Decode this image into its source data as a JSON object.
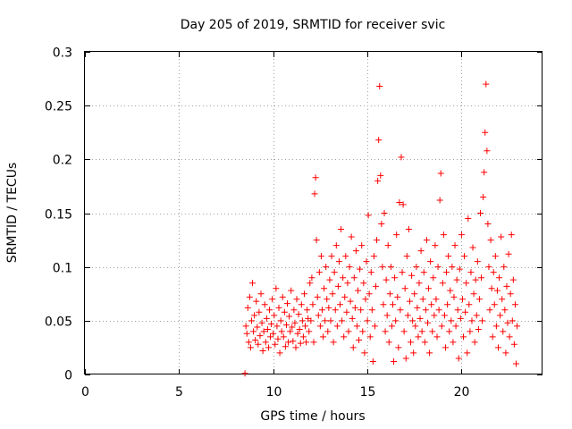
{
  "chart_data": {
    "type": "scatter",
    "title": "Day 205 of 2019, SRMTID for receiver svic",
    "xlabel": "GPS time / hours",
    "ylabel": "SRMTID / TECUs",
    "xlim": [
      0,
      24.3
    ],
    "ylim": [
      0,
      0.3
    ],
    "xticks": [
      0,
      5,
      10,
      15,
      20
    ],
    "xtick_labels": [
      "0",
      "5",
      "10",
      "15",
      "20"
    ],
    "yticks": [
      0,
      0.05,
      0.1,
      0.15,
      0.2,
      0.25,
      0.3
    ],
    "ytick_labels": [
      "0",
      "0.05",
      "0.1",
      "0.15",
      "0.2",
      "0.25",
      "0.3"
    ],
    "grid": true,
    "marker": "+",
    "color": "#ff0000",
    "series": [
      {
        "name": "svic",
        "points": [
          [
            8.5,
            0.001
          ],
          [
            8.55,
            0.045
          ],
          [
            8.6,
            0.038
          ],
          [
            8.65,
            0.062
          ],
          [
            8.7,
            0.03
          ],
          [
            8.75,
            0.072
          ],
          [
            8.8,
            0.025
          ],
          [
            8.85,
            0.05
          ],
          [
            8.9,
            0.085
          ],
          [
            8.95,
            0.04
          ],
          [
            9.0,
            0.055
          ],
          [
            9.05,
            0.032
          ],
          [
            9.1,
            0.068
          ],
          [
            9.15,
            0.044
          ],
          [
            9.2,
            0.028
          ],
          [
            9.25,
            0.058
          ],
          [
            9.3,
            0.036
          ],
          [
            9.35,
            0.075
          ],
          [
            9.4,
            0.048
          ],
          [
            9.45,
            0.022
          ],
          [
            9.5,
            0.04
          ],
          [
            9.55,
            0.065
          ],
          [
            9.6,
            0.03
          ],
          [
            9.65,
            0.052
          ],
          [
            9.7,
            0.042
          ],
          [
            9.75,
            0.025
          ],
          [
            9.8,
            0.06
          ],
          [
            9.85,
            0.035
          ],
          [
            9.9,
            0.047
          ],
          [
            9.95,
            0.07
          ],
          [
            10.0,
            0.038
          ],
          [
            10.05,
            0.055
          ],
          [
            10.1,
            0.028
          ],
          [
            10.15,
            0.08
          ],
          [
            10.2,
            0.045
          ],
          [
            10.25,
            0.033
          ],
          [
            10.3,
            0.062
          ],
          [
            10.35,
            0.02
          ],
          [
            10.4,
            0.05
          ],
          [
            10.45,
            0.04
          ],
          [
            10.5,
            0.072
          ],
          [
            10.55,
            0.035
          ],
          [
            10.6,
            0.058
          ],
          [
            10.65,
            0.026
          ],
          [
            10.7,
            0.046
          ],
          [
            10.75,
            0.066
          ],
          [
            10.8,
            0.03
          ],
          [
            10.85,
            0.054
          ],
          [
            10.9,
            0.04
          ],
          [
            10.95,
            0.078
          ],
          [
            11.0,
            0.044
          ],
          [
            11.05,
            0.031
          ],
          [
            11.1,
            0.06
          ],
          [
            11.15,
            0.048
          ],
          [
            11.2,
            0.025
          ],
          [
            11.25,
            0.07
          ],
          [
            11.3,
            0.038
          ],
          [
            11.35,
            0.056
          ],
          [
            11.4,
            0.042
          ],
          [
            11.45,
            0.029
          ],
          [
            11.5,
            0.065
          ],
          [
            11.55,
            0.05
          ],
          [
            11.6,
            0.035
          ],
          [
            11.65,
            0.075
          ],
          [
            11.7,
            0.045
          ],
          [
            11.75,
            0.03
          ],
          [
            11.8,
            0.06
          ],
          [
            11.85,
            0.052
          ],
          [
            11.9,
            0.04
          ],
          [
            11.95,
            0.085
          ],
          [
            12.0,
            0.05
          ],
          [
            12.05,
            0.09
          ],
          [
            12.1,
            0.065
          ],
          [
            12.15,
            0.03
          ],
          [
            12.2,
            0.168
          ],
          [
            12.25,
            0.183
          ],
          [
            12.3,
            0.125
          ],
          [
            12.35,
            0.072
          ],
          [
            12.4,
            0.055
          ],
          [
            12.45,
            0.095
          ],
          [
            12.5,
            0.045
          ],
          [
            12.55,
            0.11
          ],
          [
            12.6,
            0.06
          ],
          [
            12.65,
            0.035
          ],
          [
            12.7,
            0.08
          ],
          [
            12.75,
            0.05
          ],
          [
            12.8,
            0.1
          ],
          [
            12.85,
            0.07
          ],
          [
            12.9,
            0.04
          ],
          [
            12.95,
            0.062
          ],
          [
            13.0,
            0.088
          ],
          [
            13.05,
            0.05
          ],
          [
            13.1,
            0.11
          ],
          [
            13.15,
            0.075
          ],
          [
            13.2,
            0.03
          ],
          [
            13.25,
            0.095
          ],
          [
            13.3,
            0.06
          ],
          [
            13.35,
            0.12
          ],
          [
            13.4,
            0.045
          ],
          [
            13.45,
            0.082
          ],
          [
            13.5,
            0.105
          ],
          [
            13.55,
            0.065
          ],
          [
            13.6,
            0.135
          ],
          [
            13.65,
            0.05
          ],
          [
            13.7,
            0.09
          ],
          [
            13.75,
            0.035
          ],
          [
            13.8,
            0.072
          ],
          [
            13.85,
            0.11
          ],
          [
            13.9,
            0.058
          ],
          [
            13.95,
            0.085
          ],
          [
            14.0,
            0.04
          ],
          [
            14.05,
            0.1
          ],
          [
            14.1,
            0.068
          ],
          [
            14.15,
            0.128
          ],
          [
            14.2,
            0.052
          ],
          [
            14.25,
            0.025
          ],
          [
            14.3,
            0.09
          ],
          [
            14.35,
            0.062
          ],
          [
            14.4,
            0.115
          ],
          [
            14.45,
            0.045
          ],
          [
            14.5,
            0.078
          ],
          [
            14.55,
            0.032
          ],
          [
            14.6,
            0.098
          ],
          [
            14.65,
            0.06
          ],
          [
            14.7,
            0.12
          ],
          [
            14.75,
            0.04
          ],
          [
            14.8,
            0.085
          ],
          [
            14.85,
            0.02
          ],
          [
            14.9,
            0.07
          ],
          [
            14.95,
            0.105
          ],
          [
            15.0,
            0.05
          ],
          [
            15.05,
            0.148
          ],
          [
            15.1,
            0.075
          ],
          [
            15.15,
            0.035
          ],
          [
            15.2,
            0.095
          ],
          [
            15.25,
            0.06
          ],
          [
            15.3,
            0.012
          ],
          [
            15.35,
            0.11
          ],
          [
            15.4,
            0.045
          ],
          [
            15.45,
            0.082
          ],
          [
            15.5,
            0.125
          ],
          [
            15.55,
            0.18
          ],
          [
            15.6,
            0.218
          ],
          [
            15.65,
            0.268
          ],
          [
            15.7,
            0.185
          ],
          [
            15.75,
            0.14
          ],
          [
            15.8,
            0.1
          ],
          [
            15.85,
            0.065
          ],
          [
            15.9,
            0.15
          ],
          [
            15.95,
            0.04
          ],
          [
            16.0,
            0.088
          ],
          [
            16.05,
            0.055
          ],
          [
            16.1,
            0.12
          ],
          [
            16.15,
            0.03
          ],
          [
            16.2,
            0.075
          ],
          [
            16.25,
            0.1
          ],
          [
            16.3,
            0.045
          ],
          [
            16.35,
            0.065
          ],
          [
            16.4,
            0.012
          ],
          [
            16.45,
            0.09
          ],
          [
            16.5,
            0.05
          ],
          [
            16.55,
            0.13
          ],
          [
            16.6,
            0.072
          ],
          [
            16.65,
            0.025
          ],
          [
            16.7,
            0.16
          ],
          [
            16.75,
            0.06
          ],
          [
            16.8,
            0.202
          ],
          [
            16.85,
            0.095
          ],
          [
            16.9,
            0.158
          ],
          [
            16.95,
            0.04
          ],
          [
            17.0,
            0.08
          ],
          [
            17.05,
            0.015
          ],
          [
            17.1,
            0.11
          ],
          [
            17.15,
            0.055
          ],
          [
            17.2,
            0.135
          ],
          [
            17.25,
            0.068
          ],
          [
            17.3,
            0.03
          ],
          [
            17.35,
            0.092
          ],
          [
            17.4,
            0.05
          ],
          [
            17.45,
            0.02
          ],
          [
            17.5,
            0.075
          ],
          [
            17.55,
            0.045
          ],
          [
            17.6,
            0.1
          ],
          [
            17.65,
            0.062
          ],
          [
            17.7,
            0.035
          ],
          [
            17.75,
            0.085
          ],
          [
            17.8,
            0.052
          ],
          [
            17.85,
            0.115
          ],
          [
            17.9,
            0.04
          ],
          [
            17.95,
            0.07
          ],
          [
            18.0,
            0.095
          ],
          [
            18.05,
            0.03
          ],
          [
            18.1,
            0.06
          ],
          [
            18.15,
            0.125
          ],
          [
            18.2,
            0.048
          ],
          [
            18.25,
            0.08
          ],
          [
            18.3,
            0.02
          ],
          [
            18.35,
            0.105
          ],
          [
            18.4,
            0.065
          ],
          [
            18.45,
            0.04
          ],
          [
            18.5,
            0.09
          ],
          [
            18.55,
            0.055
          ],
          [
            18.6,
            0.12
          ],
          [
            18.65,
            0.07
          ],
          [
            18.7,
            0.035
          ],
          [
            18.75,
            0.1
          ],
          [
            18.8,
            0.06
          ],
          [
            18.85,
            0.162
          ],
          [
            18.9,
            0.187
          ],
          [
            18.95,
            0.045
          ],
          [
            19.0,
            0.085
          ],
          [
            19.05,
            0.13
          ],
          [
            19.1,
            0.055
          ],
          [
            19.15,
            0.025
          ],
          [
            19.2,
            0.095
          ],
          [
            19.25,
            0.065
          ],
          [
            19.3,
            0.11
          ],
          [
            19.35,
            0.04
          ],
          [
            19.4,
            0.078
          ],
          [
            19.45,
            0.05
          ],
          [
            19.5,
            0.1
          ],
          [
            19.55,
            0.03
          ],
          [
            19.6,
            0.072
          ],
          [
            19.65,
            0.12
          ],
          [
            19.7,
            0.045
          ],
          [
            19.75,
            0.088
          ],
          [
            19.8,
            0.06
          ],
          [
            19.85,
            0.015
          ],
          [
            19.9,
            0.098
          ],
          [
            19.95,
            0.052
          ],
          [
            20.0,
            0.13
          ],
          [
            20.05,
            0.07
          ],
          [
            20.1,
            0.035
          ],
          [
            20.15,
            0.11
          ],
          [
            20.2,
            0.058
          ],
          [
            20.25,
            0.085
          ],
          [
            20.3,
            0.02
          ],
          [
            20.35,
            0.145
          ],
          [
            20.4,
            0.065
          ],
          [
            20.45,
            0.04
          ],
          [
            20.5,
            0.095
          ],
          [
            20.55,
            0.05
          ],
          [
            20.6,
            0.118
          ],
          [
            20.65,
            0.075
          ],
          [
            20.7,
            0.03
          ],
          [
            20.75,
            0.088
          ],
          [
            20.8,
            0.055
          ],
          [
            20.85,
            0.105
          ],
          [
            20.9,
            0.042
          ],
          [
            20.95,
            0.07
          ],
          [
            21.0,
            0.15
          ],
          [
            21.05,
            0.09
          ],
          [
            21.1,
            0.05
          ],
          [
            21.15,
            0.165
          ],
          [
            21.2,
            0.188
          ],
          [
            21.25,
            0.225
          ],
          [
            21.3,
            0.27
          ],
          [
            21.35,
            0.208
          ],
          [
            21.4,
            0.14
          ],
          [
            21.45,
            0.1
          ],
          [
            21.5,
            0.06
          ],
          [
            21.55,
            0.125
          ],
          [
            21.6,
            0.08
          ],
          [
            21.65,
            0.035
          ],
          [
            21.7,
            0.095
          ],
          [
            21.75,
            0.065
          ],
          [
            21.8,
            0.11
          ],
          [
            21.85,
            0.045
          ],
          [
            21.9,
            0.078
          ],
          [
            21.95,
            0.025
          ],
          [
            22.0,
            0.09
          ],
          [
            22.05,
            0.055
          ],
          [
            22.1,
            0.128
          ],
          [
            22.15,
            0.07
          ],
          [
            22.2,
            0.04
          ],
          [
            22.25,
            0.1
          ],
          [
            22.3,
            0.06
          ],
          [
            22.35,
            0.02
          ],
          [
            22.4,
            0.082
          ],
          [
            22.45,
            0.048
          ],
          [
            22.5,
            0.112
          ],
          [
            22.55,
            0.035
          ],
          [
            22.6,
            0.075
          ],
          [
            22.65,
            0.13
          ],
          [
            22.7,
            0.05
          ],
          [
            22.75,
            0.088
          ],
          [
            22.8,
            0.028
          ],
          [
            22.85,
            0.065
          ],
          [
            22.9,
            0.01
          ],
          [
            22.95,
            0.045
          ]
        ]
      }
    ]
  }
}
